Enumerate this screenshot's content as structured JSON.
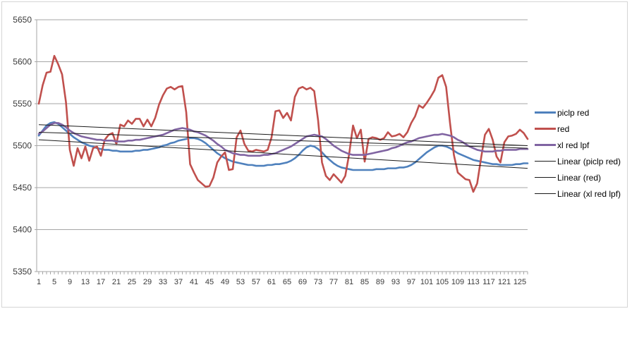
{
  "chart_data": {
    "type": "line",
    "title": "",
    "x_points": 127,
    "x_axis": {
      "tick_labels": [
        "1",
        "5",
        "9",
        "13",
        "17",
        "21",
        "25",
        "29",
        "33",
        "37",
        "41",
        "45",
        "49",
        "53",
        "57",
        "61",
        "65",
        "69",
        "73",
        "77",
        "81",
        "85",
        "89",
        "93",
        "97",
        "101",
        "105",
        "109",
        "113",
        "117",
        "121",
        "125"
      ],
      "label_every": 4
    },
    "y_axis": {
      "min": 5350,
      "max": 5650,
      "step": 50,
      "tick_labels": [
        "5350",
        "5400",
        "5450",
        "5500",
        "5550",
        "5600",
        "5650"
      ]
    },
    "grid": "horizontal-major",
    "series": [
      {
        "name": "piclp red",
        "color": "#4f81bd",
        "width": 2.6,
        "values": [
          5512,
          5518,
          5524,
          5527,
          5528,
          5526,
          5522,
          5518,
          5514,
          5510,
          5507,
          5504,
          5502,
          5500,
          5499,
          5497,
          5496,
          5495,
          5495,
          5494,
          5494,
          5493,
          5493,
          5493,
          5493,
          5494,
          5494,
          5495,
          5495,
          5496,
          5497,
          5498,
          5500,
          5501,
          5503,
          5504,
          5506,
          5507,
          5508,
          5509,
          5509,
          5508,
          5506,
          5503,
          5499,
          5495,
          5491,
          5488,
          5485,
          5483,
          5481,
          5480,
          5479,
          5478,
          5477,
          5477,
          5476,
          5476,
          5476,
          5477,
          5477,
          5478,
          5478,
          5479,
          5480,
          5482,
          5485,
          5489,
          5494,
          5498,
          5500,
          5499,
          5496,
          5492,
          5487,
          5483,
          5479,
          5476,
          5474,
          5473,
          5472,
          5471,
          5471,
          5471,
          5471,
          5471,
          5471,
          5472,
          5472,
          5472,
          5473,
          5473,
          5473,
          5474,
          5474,
          5475,
          5477,
          5480,
          5484,
          5488,
          5492,
          5495,
          5498,
          5500,
          5500,
          5499,
          5497,
          5494,
          5491,
          5489,
          5487,
          5485,
          5483,
          5482,
          5481,
          5480,
          5479,
          5478,
          5478,
          5477,
          5477,
          5477,
          5477,
          5478,
          5478,
          5479,
          5479
        ]
      },
      {
        "name": "red",
        "color": "#c0504d",
        "width": 2.6,
        "values": [
          5550,
          5572,
          5587,
          5588,
          5607,
          5597,
          5585,
          5552,
          5495,
          5476,
          5497,
          5485,
          5499,
          5482,
          5497,
          5499,
          5488,
          5507,
          5513,
          5515,
          5502,
          5525,
          5523,
          5530,
          5526,
          5532,
          5532,
          5523,
          5531,
          5523,
          5533,
          5549,
          5560,
          5568,
          5570,
          5567,
          5570,
          5571,
          5540,
          5478,
          5468,
          5459,
          5455,
          5451,
          5452,
          5462,
          5480,
          5487,
          5492,
          5471,
          5472,
          5510,
          5518,
          5502,
          5494,
          5493,
          5495,
          5494,
          5493,
          5495,
          5510,
          5541,
          5542,
          5533,
          5539,
          5530,
          5558,
          5568,
          5570,
          5567,
          5569,
          5565,
          5530,
          5480,
          5464,
          5459,
          5466,
          5461,
          5456,
          5464,
          5490,
          5524,
          5509,
          5519,
          5481,
          5508,
          5510,
          5509,
          5507,
          5509,
          5516,
          5511,
          5512,
          5514,
          5510,
          5516,
          5527,
          5535,
          5548,
          5545,
          5551,
          5558,
          5566,
          5581,
          5584,
          5570,
          5527,
          5489,
          5468,
          5464,
          5460,
          5459,
          5445,
          5455,
          5485,
          5513,
          5520,
          5507,
          5487,
          5480,
          5504,
          5511,
          5512,
          5514,
          5519,
          5515,
          5508
        ]
      },
      {
        "name": "xl red lpf",
        "color": "#8064a2",
        "width": 2.6,
        "values": [
          5514,
          5517,
          5521,
          5525,
          5527,
          5527,
          5525,
          5522,
          5518,
          5515,
          5513,
          5511,
          5510,
          5509,
          5508,
          5507,
          5507,
          5506,
          5506,
          5506,
          5505,
          5505,
          5505,
          5506,
          5506,
          5507,
          5507,
          5508,
          5509,
          5510,
          5511,
          5512,
          5513,
          5515,
          5517,
          5519,
          5520,
          5521,
          5520,
          5519,
          5517,
          5516,
          5514,
          5512,
          5509,
          5506,
          5502,
          5499,
          5495,
          5493,
          5491,
          5490,
          5489,
          5489,
          5488,
          5488,
          5488,
          5488,
          5489,
          5489,
          5490,
          5491,
          5493,
          5495,
          5497,
          5499,
          5502,
          5505,
          5508,
          5511,
          5512,
          5513,
          5512,
          5511,
          5508,
          5504,
          5500,
          5497,
          5494,
          5492,
          5490,
          5489,
          5489,
          5489,
          5489,
          5490,
          5491,
          5492,
          5493,
          5494,
          5495,
          5497,
          5498,
          5500,
          5502,
          5504,
          5505,
          5507,
          5509,
          5510,
          5511,
          5512,
          5513,
          5513,
          5514,
          5513,
          5512,
          5510,
          5507,
          5505,
          5502,
          5499,
          5497,
          5495,
          5494,
          5493,
          5493,
          5493,
          5494,
          5494,
          5495,
          5495,
          5495,
          5495,
          5496,
          5496,
          5496
        ]
      }
    ],
    "trendlines": [
      {
        "name": "Linear (piclp red)",
        "color": "#1a1a1a",
        "start": 5507,
        "end": 5473
      },
      {
        "name": "Linear (red)",
        "color": "#1a1a1a",
        "start": 5525,
        "end": 5500
      },
      {
        "name": "Linear (xl red lpf)",
        "color": "#1a1a1a",
        "start": 5516,
        "end": 5497
      }
    ],
    "legend": {
      "position": "right",
      "items": [
        {
          "label": "piclp red",
          "style": "thick",
          "color": "#4f81bd"
        },
        {
          "label": "red",
          "style": "thick",
          "color": "#c0504d"
        },
        {
          "label": "xl red lpf",
          "style": "thick",
          "color": "#8064a2"
        },
        {
          "label": "Linear (piclp red)",
          "style": "thin",
          "color": "#1a1a1a"
        },
        {
          "label": "Linear (red)",
          "style": "thin",
          "color": "#1a1a1a"
        },
        {
          "label": "Linear (xl red lpf)",
          "style": "thin",
          "color": "#1a1a1a"
        }
      ]
    },
    "colors": {
      "gridline": "#a6a6a6",
      "axis_line": "#a6a6a6",
      "tick": "#a6a6a6",
      "axis_text": "#3a3a3a",
      "frame_border": "#d5d5d5",
      "background": "#ffffff"
    }
  }
}
